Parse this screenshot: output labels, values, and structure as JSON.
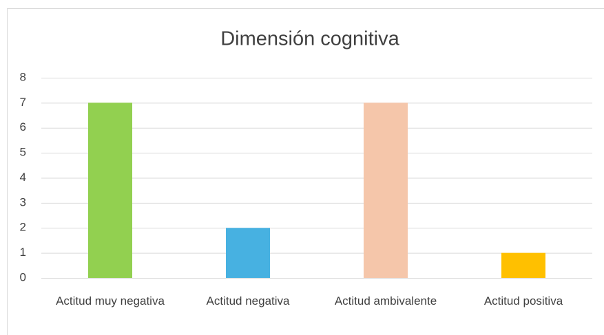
{
  "chart_data": {
    "type": "bar",
    "title": "Dimensión cognitiva",
    "categories": [
      "Actitud muy negativa",
      "Actitud negativa",
      "Actitud ambivalente",
      "Actitud positiva"
    ],
    "values": [
      7,
      2,
      7,
      1
    ],
    "colors": [
      "#92d050",
      "#47b1e1",
      "#f5c6aa",
      "#ffc000"
    ],
    "ylim": [
      0,
      8
    ],
    "yticks": [
      0,
      1,
      2,
      3,
      4,
      5,
      6,
      7,
      8
    ],
    "grid": true
  }
}
